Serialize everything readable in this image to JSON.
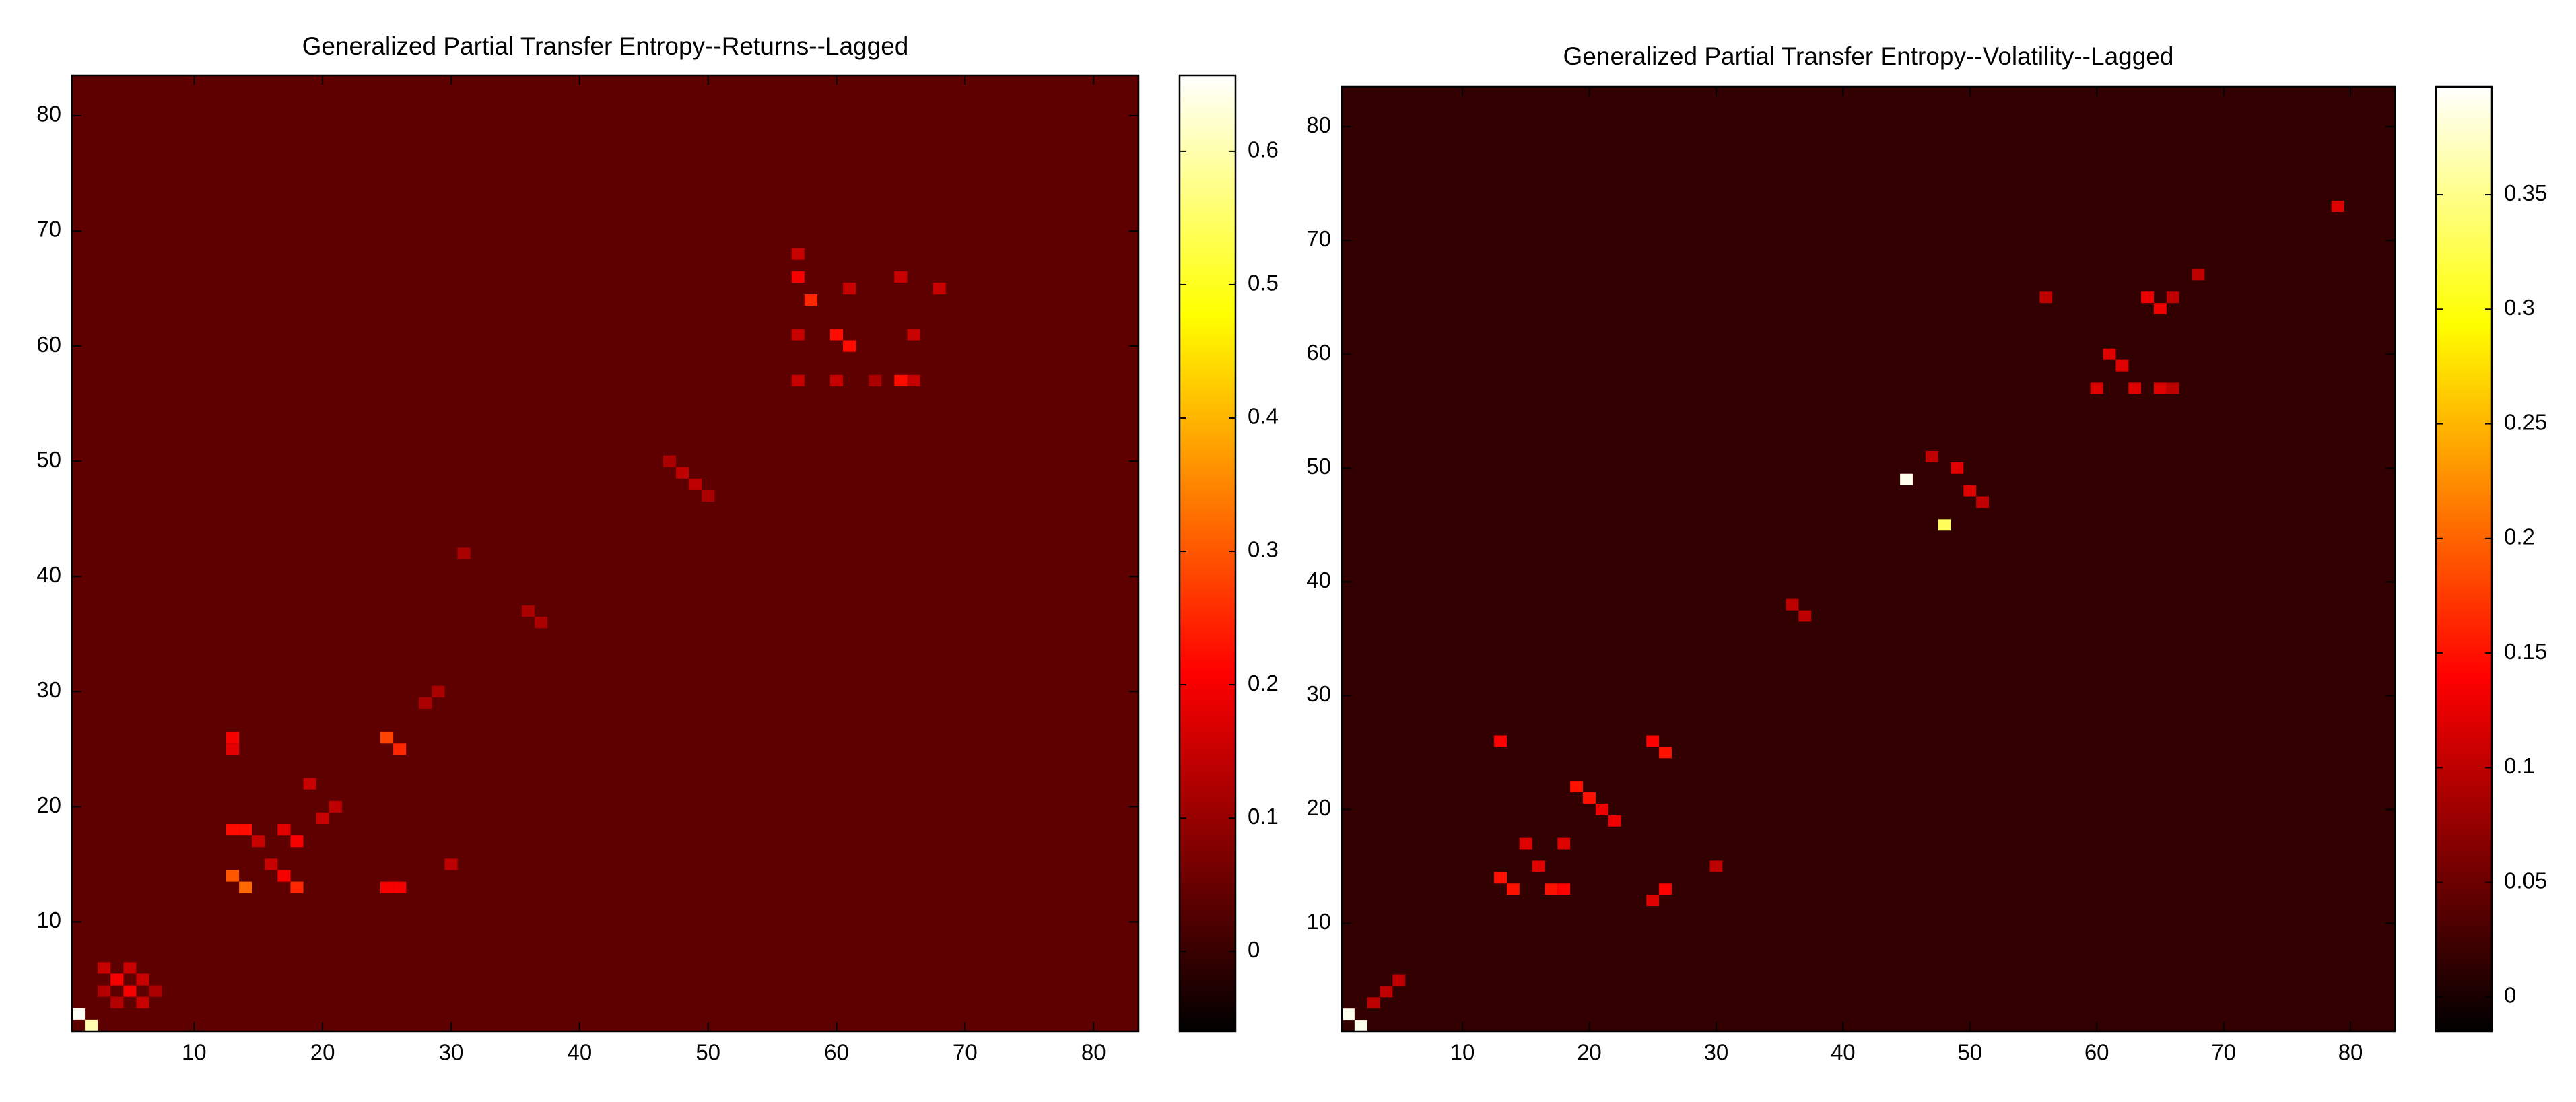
{
  "chart_data": [
    {
      "type": "heatmap",
      "title": "Generalized Partial Transfer Entropy--Returns--Lagged",
      "colormap": "hot",
      "xlim": [
        0.5,
        83.5
      ],
      "ylim": [
        0.5,
        83.5
      ],
      "xticks": [
        10,
        20,
        30,
        40,
        50,
        60,
        70,
        80
      ],
      "yticks": [
        10,
        20,
        30,
        40,
        50,
        60,
        70,
        80
      ],
      "clim": [
        -0.06,
        0.657
      ],
      "cticks": [
        0,
        0.1,
        0.2,
        0.3,
        0.4,
        0.5,
        0.6
      ],
      "background_value": 0.04,
      "cells": [
        [
          1,
          2,
          0.65
        ],
        [
          2,
          1,
          0.6
        ],
        [
          4,
          5,
          0.2
        ],
        [
          5,
          4,
          0.2
        ],
        [
          3,
          6,
          0.15
        ],
        [
          6,
          3,
          0.15
        ],
        [
          5,
          6,
          0.15
        ],
        [
          6,
          5,
          0.15
        ],
        [
          4,
          3,
          0.13
        ],
        [
          3,
          4,
          0.13
        ],
        [
          7,
          4,
          0.12
        ],
        [
          13,
          14,
          0.3
        ],
        [
          14,
          13,
          0.32
        ],
        [
          13,
          18,
          0.22
        ],
        [
          14,
          18,
          0.22
        ],
        [
          18,
          13,
          0.25
        ],
        [
          17,
          14,
          0.2
        ],
        [
          18,
          17,
          0.2
        ],
        [
          17,
          18,
          0.18
        ],
        [
          13,
          26,
          0.2
        ],
        [
          13,
          25,
          0.18
        ],
        [
          19,
          22,
          0.15
        ],
        [
          20,
          19,
          0.15
        ],
        [
          21,
          20,
          0.14
        ],
        [
          15,
          17,
          0.15
        ],
        [
          16,
          15,
          0.15
        ],
        [
          25,
          26,
          0.28
        ],
        [
          26,
          25,
          0.25
        ],
        [
          25,
          13,
          0.2
        ],
        [
          26,
          13,
          0.2
        ],
        [
          30,
          15,
          0.14
        ],
        [
          28,
          29,
          0.12
        ],
        [
          29,
          30,
          0.12
        ],
        [
          57,
          66,
          0.2
        ],
        [
          57,
          68,
          0.15
        ],
        [
          58,
          64,
          0.25
        ],
        [
          57,
          61,
          0.15
        ],
        [
          57,
          57,
          0.15
        ],
        [
          60,
          61,
          0.22
        ],
        [
          61,
          60,
          0.22
        ],
        [
          61,
          65,
          0.15
        ],
        [
          60,
          57,
          0.15
        ],
        [
          65,
          57,
          0.22
        ],
        [
          66,
          57,
          0.15
        ],
        [
          66,
          61,
          0.15
        ],
        [
          68,
          65,
          0.15
        ],
        [
          65,
          66,
          0.15
        ],
        [
          63,
          57,
          0.12
        ],
        [
          48,
          49,
          0.14
        ],
        [
          49,
          48,
          0.14
        ],
        [
          50,
          47,
          0.12
        ],
        [
          47,
          50,
          0.12
        ],
        [
          36,
          37,
          0.12
        ],
        [
          37,
          36,
          0.12
        ],
        [
          31,
          42,
          0.12
        ]
      ]
    },
    {
      "type": "heatmap",
      "title": "Generalized Partial Transfer Entropy--Volatility--Lagged",
      "colormap": "hot",
      "xlim": [
        0.5,
        83.5
      ],
      "ylim": [
        0.5,
        83.5
      ],
      "xticks": [
        10,
        20,
        30,
        40,
        50,
        60,
        70,
        80
      ],
      "yticks": [
        10,
        20,
        30,
        40,
        50,
        60,
        70,
        80
      ],
      "clim": [
        -0.015,
        0.397
      ],
      "cticks": [
        0,
        0.05,
        0.1,
        0.15,
        0.2,
        0.25,
        0.3,
        0.35
      ],
      "background_value": 0.015,
      "cells": [
        [
          1,
          2,
          0.39
        ],
        [
          2,
          1,
          0.39
        ],
        [
          45,
          49,
          0.39
        ],
        [
          48,
          45,
          0.33
        ],
        [
          3,
          3,
          0.1
        ],
        [
          4,
          4,
          0.1
        ],
        [
          5,
          5,
          0.1
        ],
        [
          13,
          14,
          0.15
        ],
        [
          14,
          13,
          0.15
        ],
        [
          17,
          13,
          0.15
        ],
        [
          18,
          13,
          0.14
        ],
        [
          13,
          26,
          0.14
        ],
        [
          19,
          22,
          0.15
        ],
        [
          20,
          21,
          0.15
        ],
        [
          21,
          20,
          0.13
        ],
        [
          22,
          19,
          0.13
        ],
        [
          26,
          25,
          0.15
        ],
        [
          25,
          26,
          0.14
        ],
        [
          26,
          13,
          0.14
        ],
        [
          25,
          12,
          0.12
        ],
        [
          15,
          17,
          0.12
        ],
        [
          16,
          15,
          0.12
        ],
        [
          18,
          17,
          0.12
        ],
        [
          37,
          37,
          0.1
        ],
        [
          36,
          38,
          0.1
        ],
        [
          30,
          15,
          0.1
        ],
        [
          50,
          48,
          0.12
        ],
        [
          49,
          50,
          0.12
        ],
        [
          51,
          47,
          0.1
        ],
        [
          47,
          51,
          0.1
        ],
        [
          65,
          64,
          0.13
        ],
        [
          64,
          65,
          0.13
        ],
        [
          66,
          65,
          0.1
        ],
        [
          63,
          57,
          0.12
        ],
        [
          61,
          60,
          0.12
        ],
        [
          62,
          59,
          0.12
        ],
        [
          60,
          57,
          0.12
        ],
        [
          65,
          57,
          0.12
        ],
        [
          66,
          57,
          0.1
        ],
        [
          79,
          73,
          0.12
        ],
        [
          56,
          65,
          0.1
        ],
        [
          68,
          67,
          0.1
        ]
      ]
    }
  ]
}
